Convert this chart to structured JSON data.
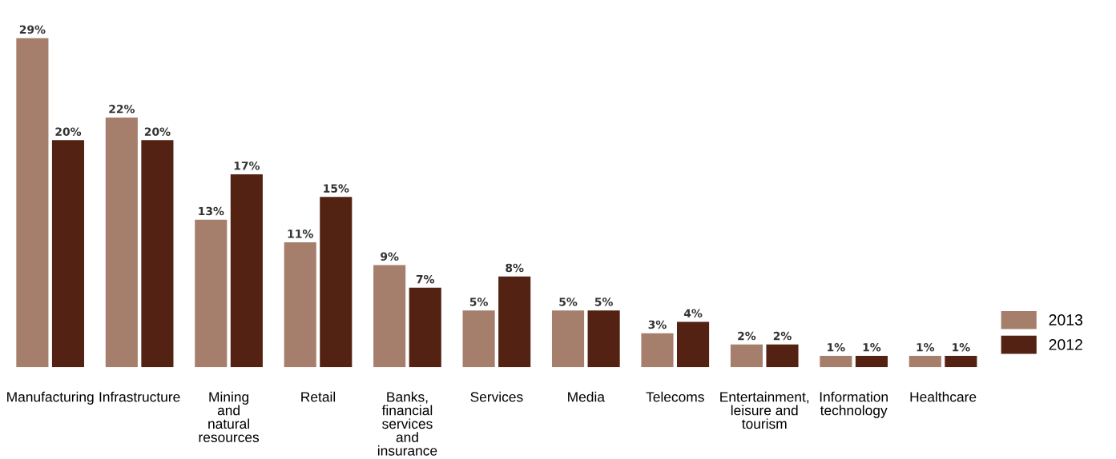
{
  "chart_data": {
    "type": "bar",
    "categories": [
      "Manufacturing",
      "Infrastructure",
      "Mining\nand\nnatural\nresources",
      "Retail",
      "Banks,\nfinancial\nservices\nand\ninsurance",
      "Services",
      "Media",
      "Telecoms",
      "Entertainment,\nleisure and\ntourism",
      "Information\ntechnology",
      "Healthcare"
    ],
    "series": [
      {
        "name": "2013",
        "color": "#a67f6c",
        "values": [
          29,
          22,
          13,
          11,
          9,
          5,
          5,
          3,
          2,
          1,
          1
        ],
        "value_labels": [
          "29%",
          "22%",
          "13%",
          "11%",
          "9%",
          "5%",
          "5%",
          "3%",
          "2%",
          "1%",
          "1%"
        ]
      },
      {
        "name": "2012",
        "color": "#532212",
        "values": [
          20,
          20,
          17,
          15,
          7,
          8,
          5,
          4,
          2,
          1,
          1
        ],
        "value_labels": [
          "20%",
          "20%",
          "17%",
          "15%",
          "7%",
          "8%",
          "5%",
          "4%",
          "2%",
          "1%",
          "1%"
        ]
      }
    ],
    "legend": "bottom right",
    "grid": false
  }
}
